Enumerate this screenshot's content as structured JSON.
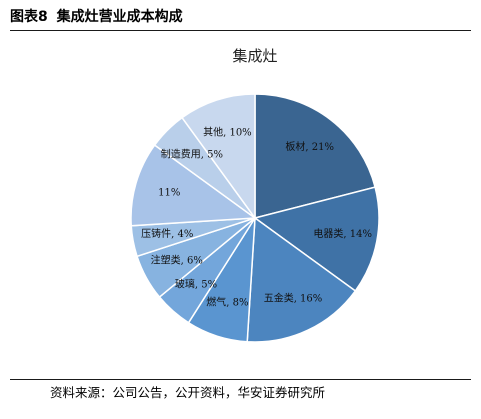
{
  "figure": {
    "label": "图表8",
    "title": "集成灶营业成本构成",
    "source": "资料来源：公司公告，公开资料，华安证券研究所"
  },
  "chart_data": {
    "type": "pie",
    "title": "集成灶",
    "start_angle_deg": 0,
    "direction": "clockwise",
    "slices": [
      {
        "label": "板材",
        "value": 21,
        "value_text": "21%",
        "color": "#3a6591"
      },
      {
        "label": "电器类",
        "value": 14,
        "value_text": "14%",
        "color": "#3f72a6"
      },
      {
        "label": "五金类",
        "value": 16,
        "value_text": "16%",
        "color": "#4c85bf"
      },
      {
        "label": "燃气",
        "value": 8,
        "value_text": "8%",
        "color": "#5a95d0"
      },
      {
        "label": "玻璃",
        "value": 5,
        "value_text": "5%",
        "color": "#73a6db"
      },
      {
        "label": "注塑类",
        "value": 6,
        "value_text": "6%",
        "color": "#87b3e0"
      },
      {
        "label": "压铸件",
        "value": 4,
        "value_text": "4%",
        "color": "#9dc0e5"
      },
      {
        "label": "",
        "value": 11,
        "value_text": "11%",
        "color": "#a8c3e8"
      },
      {
        "label": "制造费用",
        "value": 5,
        "value_text": "5%",
        "color": "#b9cfea"
      },
      {
        "label": "其他",
        "value": 10,
        "value_text": "10%",
        "color": "#c8d8ee"
      }
    ]
  }
}
